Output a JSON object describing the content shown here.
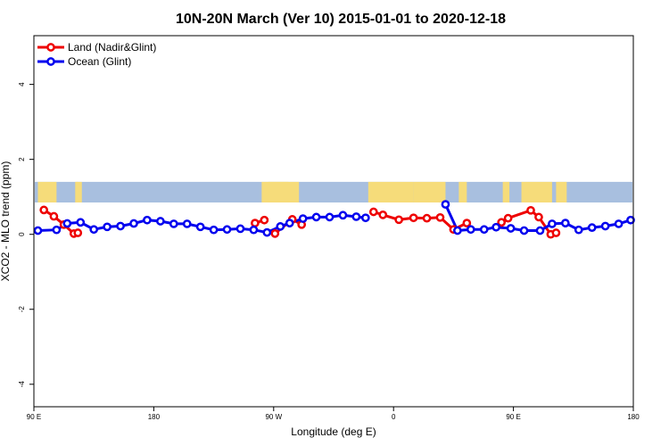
{
  "chart_data": {
    "type": "line",
    "title": "10N-20N March (Ver 10)   2015-01-01 to 2020-12-18",
    "xlabel": "Longitude (deg E)",
    "ylabel": "XCO2 - MLO trend (ppm)",
    "x_ticks": [
      {
        "value": 90,
        "label": "90 E"
      },
      {
        "value": 180,
        "label": "180"
      },
      {
        "value": 270,
        "label": "90 W"
      },
      {
        "value": 360,
        "label": "0"
      },
      {
        "value": 450,
        "label": "90 E"
      },
      {
        "value": 540,
        "label": "180"
      }
    ],
    "y_ticks": [
      {
        "value": -4,
        "label": "-4"
      },
      {
        "value": -2,
        "label": "-2"
      },
      {
        "value": 0,
        "label": "0"
      },
      {
        "value": 2,
        "label": "2"
      },
      {
        "value": 4,
        "label": "4"
      }
    ],
    "xlim": [
      90,
      540
    ],
    "ylim": [
      -4.6,
      5.3
    ],
    "grid": false,
    "legend_position": "top-left",
    "map_strip": {
      "y_range": [
        0.85,
        1.4
      ],
      "ocean_color": "#a8bfdf",
      "land_color": "#f6dc7a",
      "land_x_ranges": [
        [
          93,
          107
        ],
        [
          121,
          123
        ],
        [
          122,
          126
        ],
        [
          261,
          276
        ],
        [
          266,
          289
        ],
        [
          276,
          281
        ],
        [
          341,
          375
        ],
        [
          375,
          399
        ],
        [
          409,
          415
        ],
        [
          442,
          447
        ],
        [
          456,
          479
        ],
        [
          482,
          490
        ]
      ]
    },
    "series": [
      {
        "name": "Land (Nadir&Glint)",
        "color": "#ee0000",
        "segments": [
          [
            [
              97.5,
              0.65
            ],
            [
              105,
              0.48
            ],
            [
              112.5,
              0.26
            ],
            [
              120,
              0.02
            ],
            [
              123,
              0.04
            ]
          ],
          [
            [
              256,
              0.3
            ],
            [
              263,
              0.38
            ]
          ],
          [
            [
              271,
              0.02
            ],
            [
              284,
              0.4
            ],
            [
              291,
              0.26
            ]
          ],
          [
            [
              345,
              0.6
            ],
            [
              352,
              0.52
            ],
            [
              364,
              0.39
            ],
            [
              375,
              0.44
            ],
            [
              385,
              0.43
            ],
            [
              395,
              0.45
            ],
            [
              405,
              0.13
            ],
            [
              415,
              0.3
            ]
          ],
          [
            [
              441,
              0.32
            ],
            [
              446,
              0.43
            ],
            [
              463,
              0.64
            ],
            [
              469,
              0.46
            ],
            [
              478,
              0.0
            ],
            [
              482,
              0.04
            ]
          ]
        ]
      },
      {
        "name": "Ocean (Glint)",
        "color": "#0000ee",
        "segments": [
          [
            [
              93,
              0.1
            ],
            [
              107,
              0.12
            ],
            [
              115,
              0.29
            ],
            [
              125,
              0.32
            ],
            [
              135,
              0.13
            ],
            [
              145,
              0.2
            ],
            [
              155,
              0.22
            ],
            [
              165,
              0.29
            ],
            [
              175,
              0.38
            ],
            [
              185,
              0.35
            ],
            [
              195,
              0.28
            ],
            [
              205,
              0.28
            ],
            [
              215,
              0.2
            ],
            [
              225,
              0.12
            ],
            [
              235,
              0.13
            ],
            [
              245,
              0.15
            ],
            [
              255,
              0.12
            ],
            [
              265,
              0.05
            ],
            [
              275,
              0.21
            ],
            [
              282,
              0.3
            ],
            [
              292,
              0.42
            ],
            [
              302,
              0.46
            ],
            [
              312,
              0.46
            ],
            [
              322,
              0.51
            ],
            [
              332,
              0.47
            ],
            [
              339,
              0.44
            ]
          ],
          [
            [
              399,
              0.8
            ],
            [
              408,
              0.1
            ],
            [
              418,
              0.13
            ],
            [
              428,
              0.13
            ],
            [
              437,
              0.19
            ],
            [
              448,
              0.16
            ],
            [
              458,
              0.1
            ],
            [
              470,
              0.1
            ],
            [
              479,
              0.28
            ],
            [
              489,
              0.3
            ],
            [
              499,
              0.12
            ],
            [
              509,
              0.18
            ],
            [
              519,
              0.22
            ],
            [
              529,
              0.28
            ],
            [
              538,
              0.38
            ]
          ]
        ]
      }
    ]
  }
}
